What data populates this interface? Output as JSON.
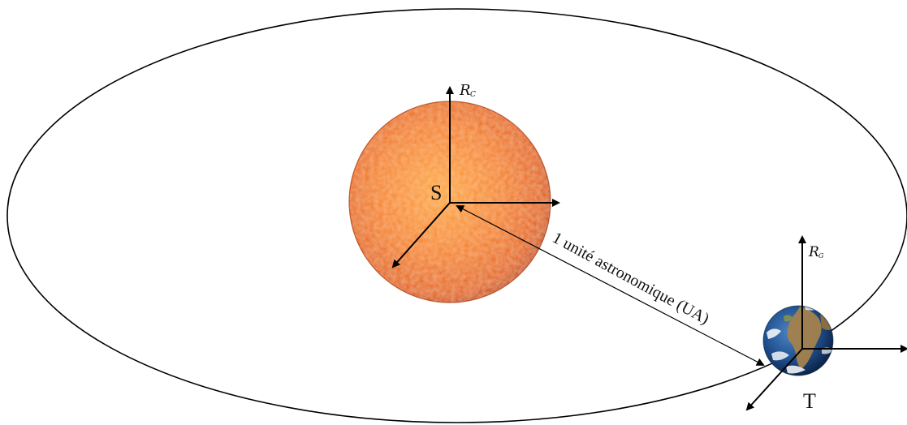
{
  "labels": {
    "sun": "S",
    "earth": "T",
    "heliocentric_frame": "R",
    "heliocentric_frame_sub": "C",
    "geocentric_frame": "R",
    "geocentric_frame_sub": "G",
    "distance": "1 unité astronomique (UA)"
  },
  "colors": {
    "sun_core": "#ff9a2e",
    "sun_mid": "#f26d10",
    "sun_edge": "#c73c05",
    "earth_ocean": "#1e4f8f",
    "earth_land": "#9b7a4a",
    "stroke": "#000000"
  },
  "icons": {
    "sun": "sun-disk",
    "earth": "earth-globe"
  }
}
